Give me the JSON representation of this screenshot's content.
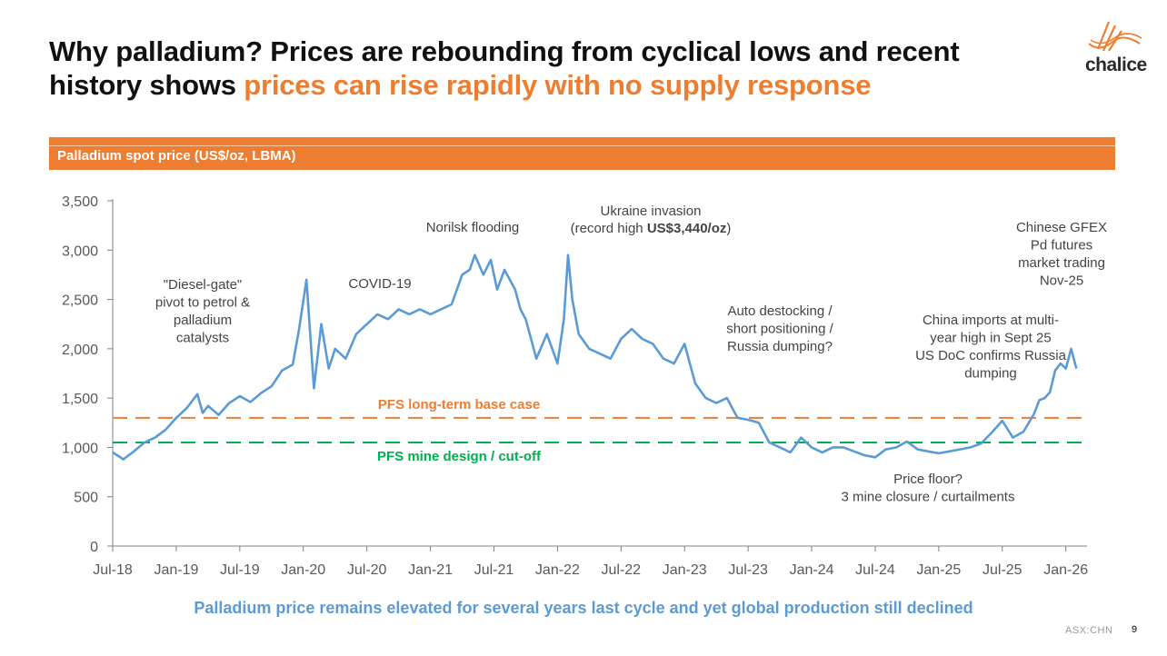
{
  "title": {
    "line1": "Why palladium? Prices are rebounding from cyclical lows and recent",
    "line2_plain": "history shows ",
    "line2_highlight": "prices can rise rapidly with no supply response"
  },
  "logo": {
    "text": "chalice"
  },
  "band": {
    "label": "Palladium spot price (US$/oz, LBMA)"
  },
  "colors": {
    "accent": "#ED7D31",
    "line": "#5B9BD5",
    "green": "#00B050",
    "axis": "#808080"
  },
  "chart_data": {
    "type": "line",
    "title": "Palladium spot price (US$/oz, LBMA)",
    "xlabel": "",
    "ylabel": "US$/oz",
    "ylim": [
      0,
      3500
    ],
    "yticks": [
      0,
      500,
      1000,
      1500,
      2000,
      2500,
      3000,
      3500
    ],
    "yticks_labels": [
      "0",
      "500",
      "1,000",
      "1,500",
      "2,000",
      "2,500",
      "3,000",
      "3,500"
    ],
    "xlim": [
      0,
      92
    ],
    "xticks": [
      {
        "m": 0,
        "label": "Jul-18"
      },
      {
        "m": 6,
        "label": "Jan-19"
      },
      {
        "m": 12,
        "label": "Jul-19"
      },
      {
        "m": 18,
        "label": "Jan-20"
      },
      {
        "m": 24,
        "label": "Jul-20"
      },
      {
        "m": 30,
        "label": "Jan-21"
      },
      {
        "m": 36,
        "label": "Jul-21"
      },
      {
        "m": 42,
        "label": "Jan-22"
      },
      {
        "m": 48,
        "label": "Jul-22"
      },
      {
        "m": 54,
        "label": "Jan-23"
      },
      {
        "m": 60,
        "label": "Jul-23"
      },
      {
        "m": 66,
        "label": "Jan-24"
      },
      {
        "m": 72,
        "label": "Jul-24"
      },
      {
        "m": 78,
        "label": "Jan-25"
      },
      {
        "m": 84,
        "label": "Jul-25"
      },
      {
        "m": 90,
        "label": "Jan-26"
      }
    ],
    "x_unit": "months since Jul-2018",
    "series": [
      {
        "name": "Palladium spot price",
        "x": [
          0,
          1,
          2,
          3,
          4,
          5,
          6,
          7,
          8,
          8.5,
          9,
          10,
          11,
          12,
          13,
          14,
          15,
          16,
          17,
          17.6,
          18.3,
          19,
          19.7,
          20.4,
          21,
          22,
          23,
          24,
          25,
          26,
          27,
          28,
          29,
          30,
          31,
          32,
          33,
          33.7,
          34.2,
          35,
          35.7,
          36.3,
          37,
          38,
          38.5,
          39,
          39.5,
          40,
          41,
          42,
          42.6,
          43,
          43.4,
          44,
          45,
          46,
          47,
          48,
          49,
          50,
          51,
          52,
          53,
          54,
          55,
          56,
          57,
          58,
          59,
          60,
          61,
          62,
          63,
          64,
          65,
          66,
          67,
          68,
          69,
          70,
          71,
          72,
          73,
          74,
          75,
          76,
          77,
          78,
          79,
          80,
          81,
          82,
          83,
          84,
          85,
          86,
          87,
          87.5,
          88,
          88.5,
          89,
          89.5,
          90,
          90.5,
          91
        ],
        "values": [
          950,
          880,
          960,
          1050,
          1100,
          1180,
          1300,
          1400,
          1540,
          1350,
          1420,
          1330,
          1450,
          1520,
          1460,
          1550,
          1620,
          1780,
          1840,
          2200,
          2700,
          1600,
          2250,
          1800,
          2000,
          1900,
          2150,
          2250,
          2350,
          2300,
          2400,
          2350,
          2400,
          2350,
          2400,
          2450,
          2750,
          2800,
          2950,
          2750,
          2900,
          2600,
          2800,
          2600,
          2400,
          2300,
          2100,
          1900,
          2150,
          1850,
          2300,
          2950,
          2500,
          2150,
          2000,
          1950,
          1900,
          2100,
          2200,
          2100,
          2050,
          1900,
          1850,
          2050,
          1650,
          1500,
          1450,
          1500,
          1300,
          1280,
          1250,
          1050,
          1000,
          950,
          1100,
          1000,
          950,
          1000,
          1000,
          960,
          920,
          900,
          980,
          1000,
          1060,
          980,
          960,
          940,
          960,
          980,
          1000,
          1040,
          1150,
          1270,
          1100,
          1160,
          1340,
          1480,
          1500,
          1560,
          1780,
          1850,
          1800,
          2000,
          1800
        ]
      }
    ],
    "reference_lines": [
      {
        "name": "PFS long-term base case",
        "value": 1300,
        "color": "#ED7D31"
      },
      {
        "name": "PFS mine design / cut-off",
        "value": 1050,
        "color": "#00B050"
      }
    ],
    "annotations": {
      "dieselgate": [
        "\"Diesel-gate\"",
        "pivot to petrol &",
        "palladium",
        "catalysts"
      ],
      "covid": [
        "COVID-19"
      ],
      "norilsk": [
        "Norilsk flooding"
      ],
      "ukraine_1": "Ukraine invasion",
      "ukraine_2a": "(record high ",
      "ukraine_2b": "US$3,440/oz",
      "ukraine_2c": ")",
      "destock": [
        "Auto destocking /",
        "short positioning /",
        "Russia dumping?"
      ],
      "floor": [
        "Price floor?",
        "3 mine closure / curtailments"
      ],
      "china": [
        "China imports at multi-",
        "year high in Sept 25",
        "US DoC confirms Russia",
        "dumping"
      ],
      "gfex": [
        "Chinese GFEX",
        "Pd futures",
        "market trading",
        "Nov-25"
      ]
    },
    "legend": "none"
  },
  "footer": {
    "message": "Palladium price remains elevated for several years last cycle and yet global production still declined"
  },
  "meta": {
    "ticker": "ASX:CHN",
    "page": "9"
  }
}
